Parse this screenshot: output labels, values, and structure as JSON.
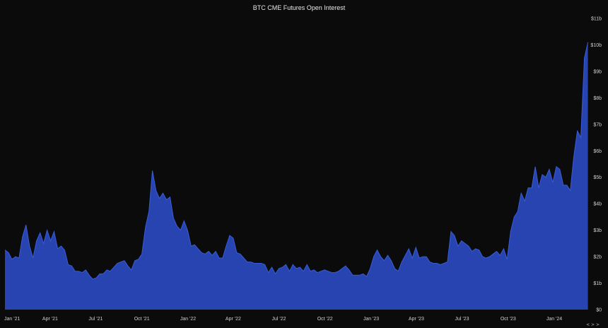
{
  "chart_data": {
    "type": "area",
    "title": "BTC CME Futures Open Interest",
    "xlabel": "",
    "ylabel": "",
    "x_start": "2021-01-01",
    "x_end": "2024-03-10",
    "x_ticks": [
      {
        "label": "Jan '21",
        "date": "2021-01-01"
      },
      {
        "label": "Apr '21",
        "date": "2021-04-01"
      },
      {
        "label": "Jul '21",
        "date": "2021-07-01"
      },
      {
        "label": "Oct '21",
        "date": "2021-10-01"
      },
      {
        "label": "Jan '22",
        "date": "2022-01-01"
      },
      {
        "label": "Apr '22",
        "date": "2022-04-01"
      },
      {
        "label": "Jul '22",
        "date": "2022-07-01"
      },
      {
        "label": "Oct '22",
        "date": "2022-10-01"
      },
      {
        "label": "Jan '23",
        "date": "2023-01-01"
      },
      {
        "label": "Apr '23",
        "date": "2023-04-01"
      },
      {
        "label": "Jul '23",
        "date": "2023-07-01"
      },
      {
        "label": "Oct '23",
        "date": "2023-10-01"
      },
      {
        "label": "Jan '24",
        "date": "2024-01-01"
      }
    ],
    "y_ticks": [
      {
        "label": "$0",
        "value": 0
      },
      {
        "label": "$1b",
        "value": 1
      },
      {
        "label": "$2b",
        "value": 2
      },
      {
        "label": "$3b",
        "value": 3
      },
      {
        "label": "$4b",
        "value": 4
      },
      {
        "label": "$5b",
        "value": 5
      },
      {
        "label": "$6b",
        "value": 6
      },
      {
        "label": "$7b",
        "value": 7
      },
      {
        "label": "$8b",
        "value": 8
      },
      {
        "label": "$9b",
        "value": 9
      },
      {
        "label": "$10b",
        "value": 10
      },
      {
        "label": "$11b",
        "value": 11
      }
    ],
    "ylim": [
      0,
      11
    ],
    "y_unit": "billion USD",
    "grid": false,
    "series": [
      {
        "color": "#2744b0",
        "edge_color": "#3a5cd8",
        "x": [
          "2021-01-01",
          "2021-01-08",
          "2021-01-15",
          "2021-01-22",
          "2021-01-29",
          "2021-02-05",
          "2021-02-12",
          "2021-02-19",
          "2021-02-26",
          "2021-03-05",
          "2021-03-12",
          "2021-03-19",
          "2021-03-26",
          "2021-04-02",
          "2021-04-09",
          "2021-04-16",
          "2021-04-23",
          "2021-04-30",
          "2021-05-07",
          "2021-05-14",
          "2021-05-21",
          "2021-05-28",
          "2021-06-04",
          "2021-06-11",
          "2021-06-18",
          "2021-06-25",
          "2021-07-02",
          "2021-07-09",
          "2021-07-16",
          "2021-07-23",
          "2021-07-30",
          "2021-08-06",
          "2021-08-13",
          "2021-08-20",
          "2021-08-27",
          "2021-09-03",
          "2021-09-10",
          "2021-09-17",
          "2021-09-24",
          "2021-10-01",
          "2021-10-08",
          "2021-10-15",
          "2021-10-22",
          "2021-10-29",
          "2021-11-05",
          "2021-11-12",
          "2021-11-19",
          "2021-11-26",
          "2021-12-03",
          "2021-12-10",
          "2021-12-17",
          "2021-12-24",
          "2021-12-31",
          "2022-01-07",
          "2022-01-14",
          "2022-01-21",
          "2022-01-28",
          "2022-02-04",
          "2022-02-11",
          "2022-02-18",
          "2022-02-25",
          "2022-03-04",
          "2022-03-11",
          "2022-03-18",
          "2022-03-25",
          "2022-04-01",
          "2022-04-08",
          "2022-04-15",
          "2022-04-22",
          "2022-04-29",
          "2022-05-06",
          "2022-05-13",
          "2022-05-20",
          "2022-05-27",
          "2022-06-03",
          "2022-06-10",
          "2022-06-17",
          "2022-06-24",
          "2022-07-01",
          "2022-07-08",
          "2022-07-15",
          "2022-07-22",
          "2022-07-29",
          "2022-08-05",
          "2022-08-12",
          "2022-08-19",
          "2022-08-26",
          "2022-09-02",
          "2022-09-09",
          "2022-09-16",
          "2022-09-23",
          "2022-09-30",
          "2022-10-07",
          "2022-10-14",
          "2022-10-21",
          "2022-10-28",
          "2022-11-04",
          "2022-11-11",
          "2022-11-18",
          "2022-11-25",
          "2022-12-02",
          "2022-12-09",
          "2022-12-16",
          "2022-12-23",
          "2022-12-30",
          "2023-01-06",
          "2023-01-13",
          "2023-01-20",
          "2023-01-27",
          "2023-02-03",
          "2023-02-10",
          "2023-02-17",
          "2023-02-24",
          "2023-03-03",
          "2023-03-10",
          "2023-03-17",
          "2023-03-24",
          "2023-03-31",
          "2023-04-07",
          "2023-04-14",
          "2023-04-21",
          "2023-04-28",
          "2023-05-05",
          "2023-05-12",
          "2023-05-19",
          "2023-05-26",
          "2023-06-02",
          "2023-06-09",
          "2023-06-16",
          "2023-06-23",
          "2023-06-30",
          "2023-07-07",
          "2023-07-14",
          "2023-07-21",
          "2023-07-28",
          "2023-08-04",
          "2023-08-11",
          "2023-08-18",
          "2023-08-25",
          "2023-09-01",
          "2023-09-08",
          "2023-09-15",
          "2023-09-22",
          "2023-09-29",
          "2023-10-06",
          "2023-10-13",
          "2023-10-20",
          "2023-10-27",
          "2023-11-03",
          "2023-11-10",
          "2023-11-17",
          "2023-11-24",
          "2023-12-01",
          "2023-12-08",
          "2023-12-15",
          "2023-12-22",
          "2023-12-29",
          "2024-01-05",
          "2024-01-12",
          "2024-01-19",
          "2024-01-26",
          "2024-02-02",
          "2024-02-09",
          "2024-02-16",
          "2024-02-23",
          "2024-03-01",
          "2024-03-08"
        ],
        "values": [
          2.25,
          2.15,
          1.9,
          2.0,
          1.95,
          2.75,
          3.2,
          2.4,
          1.95,
          2.6,
          2.9,
          2.5,
          3.0,
          2.6,
          2.95,
          2.3,
          2.4,
          2.25,
          1.7,
          1.65,
          1.45,
          1.45,
          1.4,
          1.5,
          1.3,
          1.15,
          1.2,
          1.35,
          1.35,
          1.5,
          1.45,
          1.6,
          1.75,
          1.8,
          1.85,
          1.65,
          1.5,
          1.85,
          1.9,
          2.1,
          3.1,
          3.7,
          5.25,
          4.5,
          4.2,
          4.4,
          4.15,
          4.25,
          3.45,
          3.15,
          3.0,
          3.35,
          3.0,
          2.4,
          2.45,
          2.3,
          2.15,
          2.1,
          2.2,
          2.05,
          2.2,
          1.95,
          1.95,
          2.4,
          2.8,
          2.7,
          2.15,
          2.1,
          1.95,
          1.8,
          1.8,
          1.75,
          1.75,
          1.75,
          1.7,
          1.4,
          1.6,
          1.35,
          1.55,
          1.6,
          1.7,
          1.45,
          1.7,
          1.55,
          1.6,
          1.45,
          1.7,
          1.45,
          1.5,
          1.4,
          1.45,
          1.5,
          1.45,
          1.4,
          1.4,
          1.45,
          1.55,
          1.65,
          1.5,
          1.3,
          1.3,
          1.3,
          1.35,
          1.25,
          1.55,
          2.0,
          2.25,
          2.0,
          1.85,
          2.05,
          1.85,
          1.55,
          1.45,
          1.8,
          2.05,
          2.3,
          1.95,
          2.35,
          1.95,
          2.0,
          2.0,
          1.8,
          1.75,
          1.75,
          1.7,
          1.75,
          1.8,
          2.95,
          2.8,
          2.4,
          2.6,
          2.5,
          2.4,
          2.2,
          2.3,
          2.25,
          2.0,
          1.95,
          2.0,
          2.1,
          2.2,
          2.05,
          2.3,
          1.9,
          2.95,
          3.5,
          3.7,
          4.4,
          4.1,
          4.6,
          4.6,
          5.4,
          4.6,
          5.1,
          5.0,
          5.3,
          4.8,
          5.4,
          5.3,
          4.7,
          4.7,
          4.5,
          5.8,
          6.75,
          6.5,
          9.5,
          10.1
        ]
      }
    ]
  },
  "navigator": {
    "symbol": "< > >"
  }
}
